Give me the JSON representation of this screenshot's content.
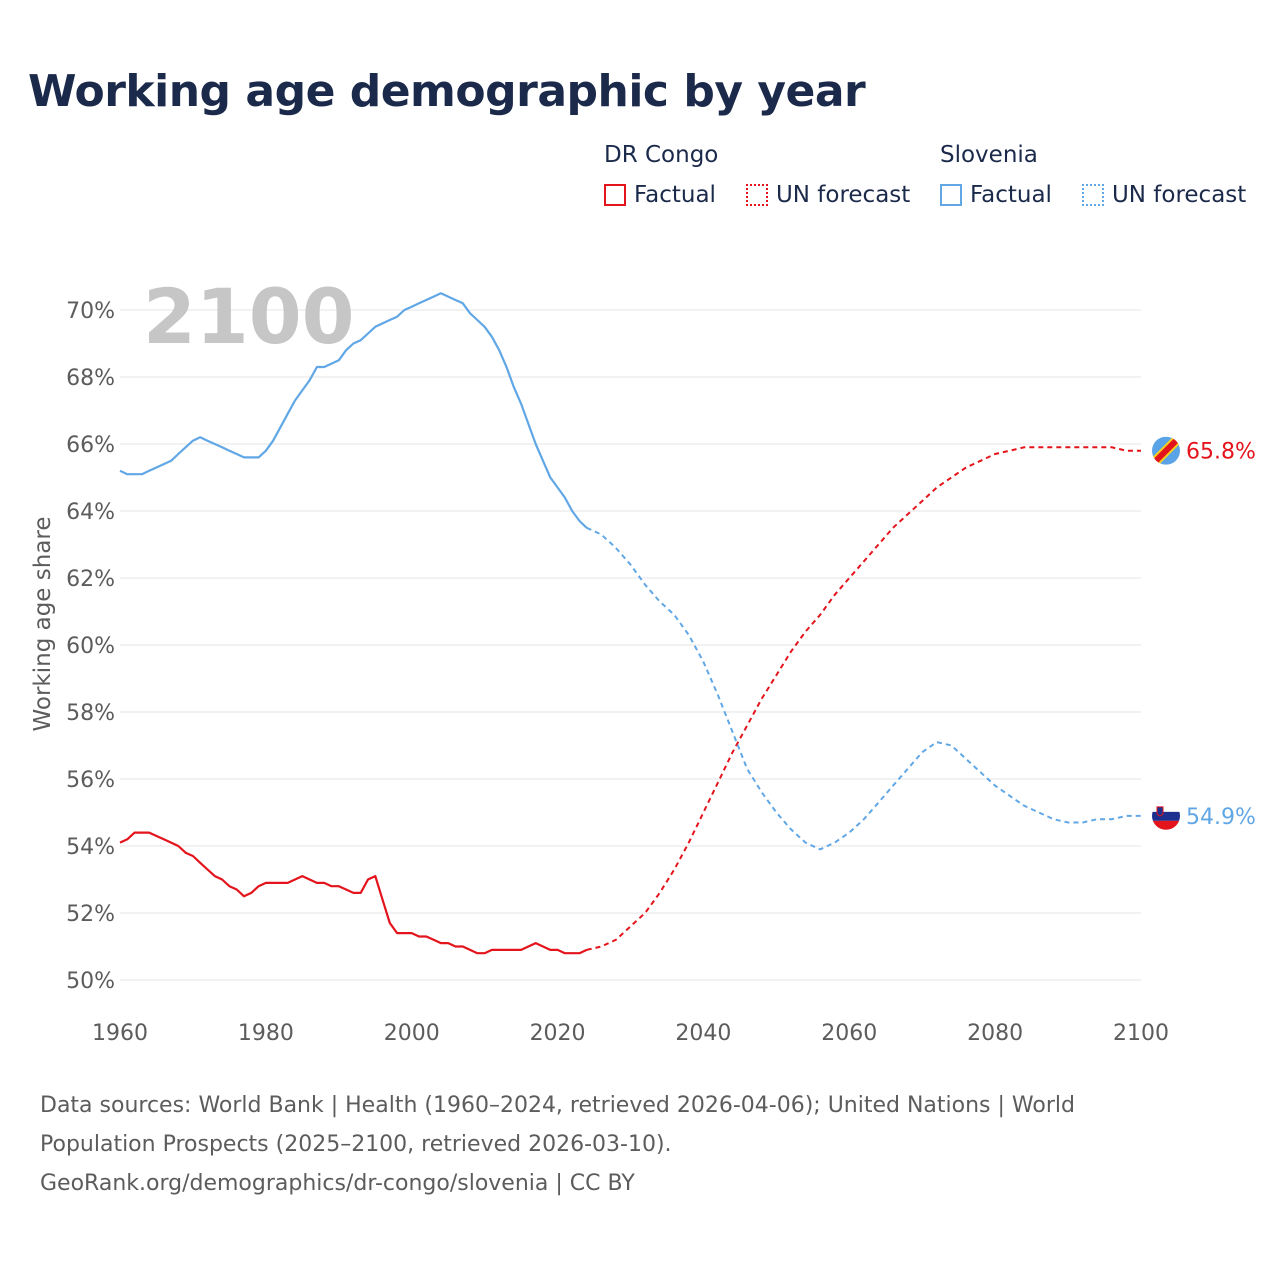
{
  "title": "Working age demographic by year",
  "legend": {
    "groups": [
      {
        "name": "DR Congo",
        "color": "#e4141c",
        "factual": "Factual",
        "forecast": "UN forecast"
      },
      {
        "name": "Slovenia",
        "color": "#61a7e6",
        "factual": "Factual",
        "forecast": "UN forecast"
      }
    ]
  },
  "year_label": "2100",
  "sources": {
    "line1": "Data sources: World Bank | Health (1960–2024, retrieved 2026-04-06); United Nations | World",
    "line2": "Population Prospects (2025–2100, retrieved 2026-03-10).",
    "line3": "GeoRank.org/demographics/dr-congo/slovenia | CC BY"
  },
  "colors": {
    "congo": "#e4141c",
    "slovenia": "#61a7e6",
    "grid": "#e6e6e6",
    "axis_text": "#5c5c5c",
    "year_watermark": "#c6c6c6"
  },
  "chart_data": {
    "type": "line",
    "title": "Working age demographic by year",
    "xlabel": "",
    "ylabel": "Working age share",
    "xlim": [
      1960,
      2100
    ],
    "ylim": [
      49.2,
      71.5
    ],
    "x_ticks": [
      1960,
      1980,
      2000,
      2020,
      2040,
      2060,
      2080,
      2100
    ],
    "y_ticks": [
      50,
      52,
      54,
      56,
      58,
      60,
      62,
      64,
      66,
      68,
      70
    ],
    "y_tick_labels": [
      "50%",
      "52%",
      "54%",
      "56%",
      "58%",
      "60%",
      "62%",
      "64%",
      "66%",
      "68%",
      "70%"
    ],
    "series": [
      {
        "name": "DR Congo",
        "color": "#e4141c",
        "end_label": "65.8%",
        "factual": [
          [
            1960,
            54.1
          ],
          [
            1961,
            54.2
          ],
          [
            1962,
            54.4
          ],
          [
            1963,
            54.4
          ],
          [
            1964,
            54.4
          ],
          [
            1965,
            54.3
          ],
          [
            1966,
            54.2
          ],
          [
            1967,
            54.1
          ],
          [
            1968,
            54.0
          ],
          [
            1969,
            53.8
          ],
          [
            1970,
            53.7
          ],
          [
            1971,
            53.5
          ],
          [
            1972,
            53.3
          ],
          [
            1973,
            53.1
          ],
          [
            1974,
            53.0
          ],
          [
            1975,
            52.8
          ],
          [
            1976,
            52.7
          ],
          [
            1977,
            52.5
          ],
          [
            1978,
            52.6
          ],
          [
            1979,
            52.8
          ],
          [
            1980,
            52.9
          ],
          [
            1981,
            52.9
          ],
          [
            1982,
            52.9
          ],
          [
            1983,
            52.9
          ],
          [
            1984,
            53.0
          ],
          [
            1985,
            53.1
          ],
          [
            1986,
            53.0
          ],
          [
            1987,
            52.9
          ],
          [
            1988,
            52.9
          ],
          [
            1989,
            52.8
          ],
          [
            1990,
            52.8
          ],
          [
            1991,
            52.7
          ],
          [
            1992,
            52.6
          ],
          [
            1993,
            52.6
          ],
          [
            1994,
            53.0
          ],
          [
            1995,
            53.1
          ],
          [
            1996,
            52.4
          ],
          [
            1997,
            51.7
          ],
          [
            1998,
            51.4
          ],
          [
            1999,
            51.4
          ],
          [
            2000,
            51.4
          ],
          [
            2001,
            51.3
          ],
          [
            2002,
            51.3
          ],
          [
            2003,
            51.2
          ],
          [
            2004,
            51.1
          ],
          [
            2005,
            51.1
          ],
          [
            2006,
            51.0
          ],
          [
            2007,
            51.0
          ],
          [
            2008,
            50.9
          ],
          [
            2009,
            50.8
          ],
          [
            2010,
            50.8
          ],
          [
            2011,
            50.9
          ],
          [
            2012,
            50.9
          ],
          [
            2013,
            50.9
          ],
          [
            2014,
            50.9
          ],
          [
            2015,
            50.9
          ],
          [
            2016,
            51.0
          ],
          [
            2017,
            51.1
          ],
          [
            2018,
            51.0
          ],
          [
            2019,
            50.9
          ],
          [
            2020,
            50.9
          ],
          [
            2021,
            50.8
          ],
          [
            2022,
            50.8
          ],
          [
            2023,
            50.8
          ],
          [
            2024,
            50.9
          ]
        ],
        "forecast": [
          [
            2024,
            50.9
          ],
          [
            2026,
            51.0
          ],
          [
            2028,
            51.2
          ],
          [
            2030,
            51.6
          ],
          [
            2032,
            52.0
          ],
          [
            2034,
            52.6
          ],
          [
            2036,
            53.3
          ],
          [
            2038,
            54.1
          ],
          [
            2040,
            55.0
          ],
          [
            2042,
            55.9
          ],
          [
            2044,
            56.8
          ],
          [
            2046,
            57.6
          ],
          [
            2048,
            58.4
          ],
          [
            2050,
            59.1
          ],
          [
            2052,
            59.8
          ],
          [
            2054,
            60.4
          ],
          [
            2056,
            60.9
          ],
          [
            2058,
            61.5
          ],
          [
            2060,
            62.0
          ],
          [
            2062,
            62.5
          ],
          [
            2064,
            63.0
          ],
          [
            2066,
            63.5
          ],
          [
            2068,
            63.9
          ],
          [
            2070,
            64.3
          ],
          [
            2072,
            64.7
          ],
          [
            2074,
            65.0
          ],
          [
            2076,
            65.3
          ],
          [
            2078,
            65.5
          ],
          [
            2080,
            65.7
          ],
          [
            2082,
            65.8
          ],
          [
            2084,
            65.9
          ],
          [
            2086,
            65.9
          ],
          [
            2088,
            65.9
          ],
          [
            2090,
            65.9
          ],
          [
            2092,
            65.9
          ],
          [
            2094,
            65.9
          ],
          [
            2096,
            65.9
          ],
          [
            2098,
            65.8
          ],
          [
            2100,
            65.8
          ]
        ]
      },
      {
        "name": "Slovenia",
        "color": "#61a7e6",
        "end_label": "54.9%",
        "factual": [
          [
            1960,
            65.2
          ],
          [
            1961,
            65.1
          ],
          [
            1962,
            65.1
          ],
          [
            1963,
            65.1
          ],
          [
            1964,
            65.2
          ],
          [
            1965,
            65.3
          ],
          [
            1966,
            65.4
          ],
          [
            1967,
            65.5
          ],
          [
            1968,
            65.7
          ],
          [
            1969,
            65.9
          ],
          [
            1970,
            66.1
          ],
          [
            1971,
            66.2
          ],
          [
            1972,
            66.1
          ],
          [
            1973,
            66.0
          ],
          [
            1974,
            65.9
          ],
          [
            1975,
            65.8
          ],
          [
            1976,
            65.7
          ],
          [
            1977,
            65.6
          ],
          [
            1978,
            65.6
          ],
          [
            1979,
            65.6
          ],
          [
            1980,
            65.8
          ],
          [
            1981,
            66.1
          ],
          [
            1982,
            66.5
          ],
          [
            1983,
            66.9
          ],
          [
            1984,
            67.3
          ],
          [
            1985,
            67.6
          ],
          [
            1986,
            67.9
          ],
          [
            1987,
            68.3
          ],
          [
            1988,
            68.3
          ],
          [
            1989,
            68.4
          ],
          [
            1990,
            68.5
          ],
          [
            1991,
            68.8
          ],
          [
            1992,
            69.0
          ],
          [
            1993,
            69.1
          ],
          [
            1994,
            69.3
          ],
          [
            1995,
            69.5
          ],
          [
            1996,
            69.6
          ],
          [
            1997,
            69.7
          ],
          [
            1998,
            69.8
          ],
          [
            1999,
            70.0
          ],
          [
            2000,
            70.1
          ],
          [
            2001,
            70.2
          ],
          [
            2002,
            70.3
          ],
          [
            2003,
            70.4
          ],
          [
            2004,
            70.5
          ],
          [
            2005,
            70.4
          ],
          [
            2006,
            70.3
          ],
          [
            2007,
            70.2
          ],
          [
            2008,
            69.9
          ],
          [
            2009,
            69.7
          ],
          [
            2010,
            69.5
          ],
          [
            2011,
            69.2
          ],
          [
            2012,
            68.8
          ],
          [
            2013,
            68.3
          ],
          [
            2014,
            67.7
          ],
          [
            2015,
            67.2
          ],
          [
            2016,
            66.6
          ],
          [
            2017,
            66.0
          ],
          [
            2018,
            65.5
          ],
          [
            2019,
            65.0
          ],
          [
            2020,
            64.7
          ],
          [
            2021,
            64.4
          ],
          [
            2022,
            64.0
          ],
          [
            2023,
            63.7
          ],
          [
            2024,
            63.5
          ]
        ],
        "forecast": [
          [
            2024,
            63.5
          ],
          [
            2026,
            63.3
          ],
          [
            2028,
            62.9
          ],
          [
            2030,
            62.4
          ],
          [
            2032,
            61.8
          ],
          [
            2034,
            61.3
          ],
          [
            2036,
            60.9
          ],
          [
            2038,
            60.3
          ],
          [
            2040,
            59.5
          ],
          [
            2042,
            58.5
          ],
          [
            2044,
            57.4
          ],
          [
            2046,
            56.3
          ],
          [
            2048,
            55.6
          ],
          [
            2050,
            55.0
          ],
          [
            2052,
            54.5
          ],
          [
            2054,
            54.1
          ],
          [
            2056,
            53.9
          ],
          [
            2058,
            54.1
          ],
          [
            2060,
            54.4
          ],
          [
            2062,
            54.8
          ],
          [
            2064,
            55.3
          ],
          [
            2066,
            55.8
          ],
          [
            2068,
            56.3
          ],
          [
            2070,
            56.8
          ],
          [
            2072,
            57.1
          ],
          [
            2074,
            57.0
          ],
          [
            2076,
            56.6
          ],
          [
            2078,
            56.2
          ],
          [
            2080,
            55.8
          ],
          [
            2082,
            55.5
          ],
          [
            2084,
            55.2
          ],
          [
            2086,
            55.0
          ],
          [
            2088,
            54.8
          ],
          [
            2090,
            54.7
          ],
          [
            2092,
            54.7
          ],
          [
            2094,
            54.8
          ],
          [
            2096,
            54.8
          ],
          [
            2098,
            54.9
          ],
          [
            2100,
            54.9
          ]
        ]
      }
    ]
  }
}
